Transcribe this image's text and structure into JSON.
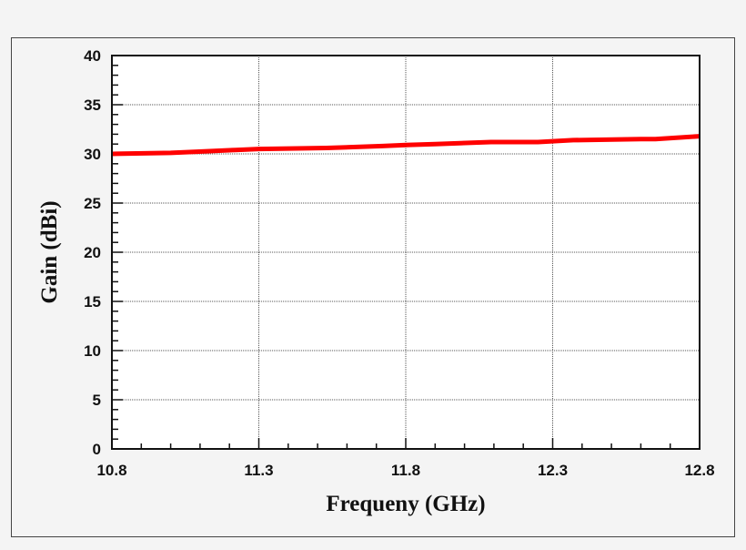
{
  "chart_data": {
    "type": "line",
    "title": "",
    "xlabel": "Frequeny (GHz)",
    "ylabel": "Gain (dBi)",
    "xlim": [
      10.8,
      12.8
    ],
    "ylim": [
      0,
      40
    ],
    "xticks": [
      "10.8",
      "11.3",
      "11.8",
      "12.3",
      "12.8"
    ],
    "yticks": [
      "0",
      "5",
      "10",
      "15",
      "20",
      "25",
      "30",
      "35",
      "40"
    ],
    "grid": true,
    "series": [
      {
        "color": "#ff0000",
        "x": [
          10.8,
          11.0,
          11.08,
          11.22,
          11.3,
          11.53,
          11.72,
          11.8,
          11.9,
          12.09,
          12.25,
          12.37,
          12.6,
          12.65,
          12.8
        ],
        "y": [
          30.0,
          30.1,
          30.2,
          30.4,
          30.5,
          30.6,
          30.8,
          30.9,
          31.0,
          31.2,
          31.2,
          31.4,
          31.5,
          31.5,
          31.8
        ]
      }
    ]
  }
}
